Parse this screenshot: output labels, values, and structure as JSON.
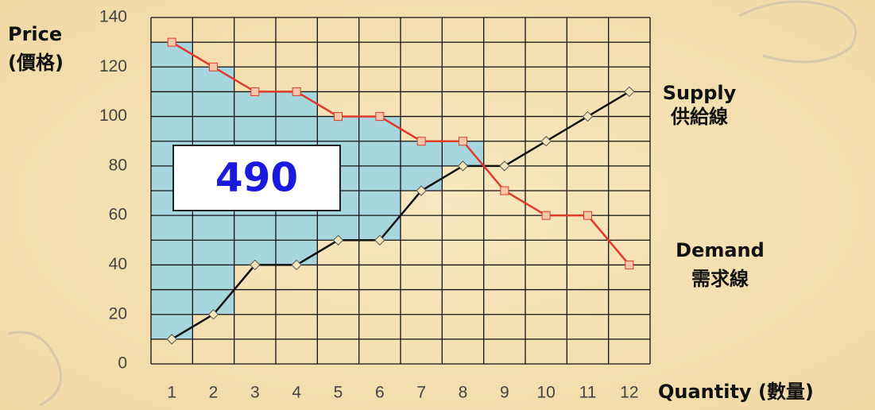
{
  "chart_data": {
    "type": "line",
    "y_label": "Price (價格)",
    "x_label": "Quantity (數量)",
    "annotation": "490",
    "categories": [
      "1",
      "2",
      "3",
      "4",
      "5",
      "6",
      "7",
      "8",
      "9",
      "10",
      "11",
      "12"
    ],
    "series": [
      {
        "name": "Supply 供給線",
        "color": "#111111",
        "label_color": "#111111",
        "marker": "diamond",
        "values": [
          10,
          20,
          40,
          40,
          50,
          50,
          70,
          80,
          80,
          90,
          100,
          110
        ]
      },
      {
        "name": "Demand 需求線",
        "color": "#e03a2a",
        "label_color": "#ee4a14",
        "marker": "square",
        "values": [
          130,
          120,
          110,
          110,
          100,
          100,
          90,
          90,
          70,
          60,
          60,
          40
        ]
      }
    ],
    "surplus_color": "#a8d6de",
    "ylim": [
      0,
      140
    ],
    "yticks": [
      0,
      20,
      40,
      60,
      80,
      100,
      120,
      140
    ],
    "grid": true
  }
}
